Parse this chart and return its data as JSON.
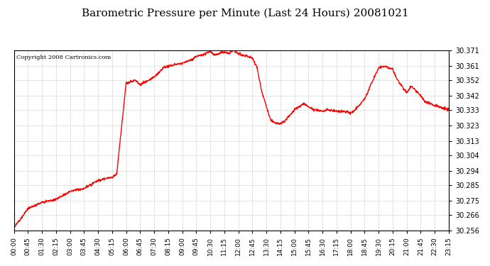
{
  "title": "Barometric Pressure per Minute (Last 24 Hours) 20081021",
  "copyright": "Copyright 2008 Cartronics.com",
  "line_color": "#ff0000",
  "bg_color": "#ffffff",
  "plot_bg_color": "#ffffff",
  "grid_color": "#cccccc",
  "y_ticks": [
    30.256,
    30.266,
    30.275,
    30.285,
    30.294,
    30.304,
    30.313,
    30.323,
    30.333,
    30.342,
    30.352,
    30.361,
    30.371
  ],
  "ylim": [
    30.256,
    30.371
  ],
  "x_tick_labels": [
    "00:00",
    "00:45",
    "01:30",
    "02:15",
    "03:00",
    "03:45",
    "04:30",
    "05:15",
    "06:00",
    "06:45",
    "07:30",
    "08:15",
    "09:00",
    "09:45",
    "10:30",
    "11:15",
    "12:00",
    "12:45",
    "13:30",
    "14:15",
    "15:00",
    "15:45",
    "16:30",
    "17:15",
    "18:00",
    "18:45",
    "19:30",
    "20:15",
    "21:00",
    "21:45",
    "22:30",
    "23:15"
  ],
  "keypoints_x": [
    0,
    45,
    90,
    135,
    180,
    225,
    270,
    315,
    330,
    360,
    390,
    405,
    450,
    480,
    495,
    540,
    570,
    585,
    615,
    630,
    645,
    660,
    675,
    690,
    705,
    720,
    735,
    750,
    765,
    780,
    795,
    810,
    825,
    840,
    855,
    870,
    900,
    915,
    930,
    945,
    960,
    975,
    990,
    1005,
    1020,
    1035,
    1050,
    1065,
    1080,
    1095,
    1125,
    1170,
    1185,
    1200,
    1215,
    1230,
    1245,
    1260,
    1275,
    1290,
    1305,
    1320,
    1350,
    1380,
    1395,
    1415
  ],
  "keypoints_y": [
    30.258,
    30.27,
    30.274,
    30.276,
    30.281,
    30.283,
    30.288,
    30.29,
    30.292,
    30.35,
    30.352,
    30.349,
    30.354,
    30.36,
    30.361,
    30.363,
    30.365,
    30.367,
    30.369,
    30.37,
    30.368,
    30.369,
    30.37,
    30.369,
    30.371,
    30.369,
    30.368,
    30.367,
    30.366,
    30.36,
    30.345,
    30.335,
    30.326,
    30.325,
    30.324,
    30.326,
    30.333,
    30.335,
    30.337,
    30.335,
    30.333,
    30.333,
    30.332,
    30.333,
    30.333,
    30.332,
    30.332,
    30.332,
    30.331,
    30.333,
    30.34,
    30.36,
    30.361,
    30.36,
    30.359,
    30.352,
    30.348,
    30.344,
    30.348,
    30.345,
    30.342,
    30.338,
    30.336,
    30.334,
    30.333,
    30.332
  ]
}
